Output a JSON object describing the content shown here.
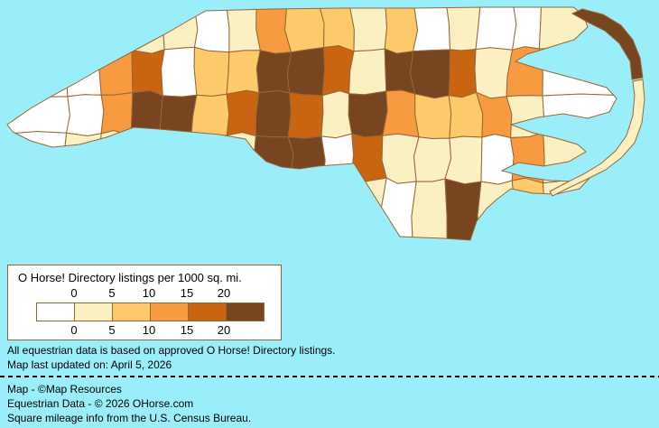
{
  "page": {
    "background_color": "#9aeefa"
  },
  "legend": {
    "title": "O Horse! Directory listings per 1000 sq. mi.",
    "ticks": [
      "0",
      "5",
      "10",
      "15",
      "20"
    ],
    "colors": [
      "#ffffff",
      "#faf0c2",
      "#fcca6b",
      "#f89b40",
      "#c96511",
      "#774621"
    ],
    "border_color": "#996633"
  },
  "notes": {
    "line1": "All equestrian data is based on approved O Horse! Directory listings.",
    "line2": "Map last updated on: April 5, 2026"
  },
  "footer": {
    "line1": "Map - ©Map Resources",
    "line2": "Equestrian Data - © 2026 OHorse.com",
    "line3": "Square mileage info from the U.S. Census Bureau."
  },
  "map": {
    "border_color": "#996633",
    "palette": {
      "w": "#ffffff",
      "c": "#faf0c2",
      "l": "#fcca6b",
      "o": "#f89b40",
      "d": "#c96511",
      "b": "#774621"
    },
    "grid": {
      "cols": [
        4,
        75,
        110,
        145,
        180,
        215,
        250,
        285,
        320,
        355,
        390,
        425,
        460,
        495,
        530,
        565,
        600,
        688
      ],
      "rows": [
        4,
        55,
        105,
        150,
        200,
        272
      ],
      "cells": [
        [
          "c",
          "c",
          "c",
          "c",
          "c",
          "w",
          "c",
          "o",
          "l",
          "l",
          "c",
          "l",
          "w",
          "c",
          "w",
          "w",
          "c"
        ],
        [
          "w",
          "w",
          "o",
          "d",
          "w",
          "l",
          "l",
          "b",
          "b",
          "d",
          "c",
          "b",
          "b",
          "d",
          "c",
          "o",
          "w"
        ],
        [
          "w",
          "w",
          "o",
          "b",
          "b",
          "l",
          "d",
          "b",
          "d",
          "c",
          "b",
          "o",
          "l",
          "l",
          "o",
          "c",
          "w"
        ],
        [
          "w",
          "c",
          "c",
          "c",
          "c",
          "c",
          "c",
          "b",
          "b",
          "w",
          "d",
          "c",
          "c",
          "c",
          "w",
          "o",
          "c"
        ],
        [
          "c",
          "c",
          "c",
          "c",
          "c",
          "c",
          "c",
          "c",
          "c",
          "c",
          "c",
          "w",
          "c",
          "b",
          "c",
          "l",
          "c"
        ]
      ]
    }
  }
}
